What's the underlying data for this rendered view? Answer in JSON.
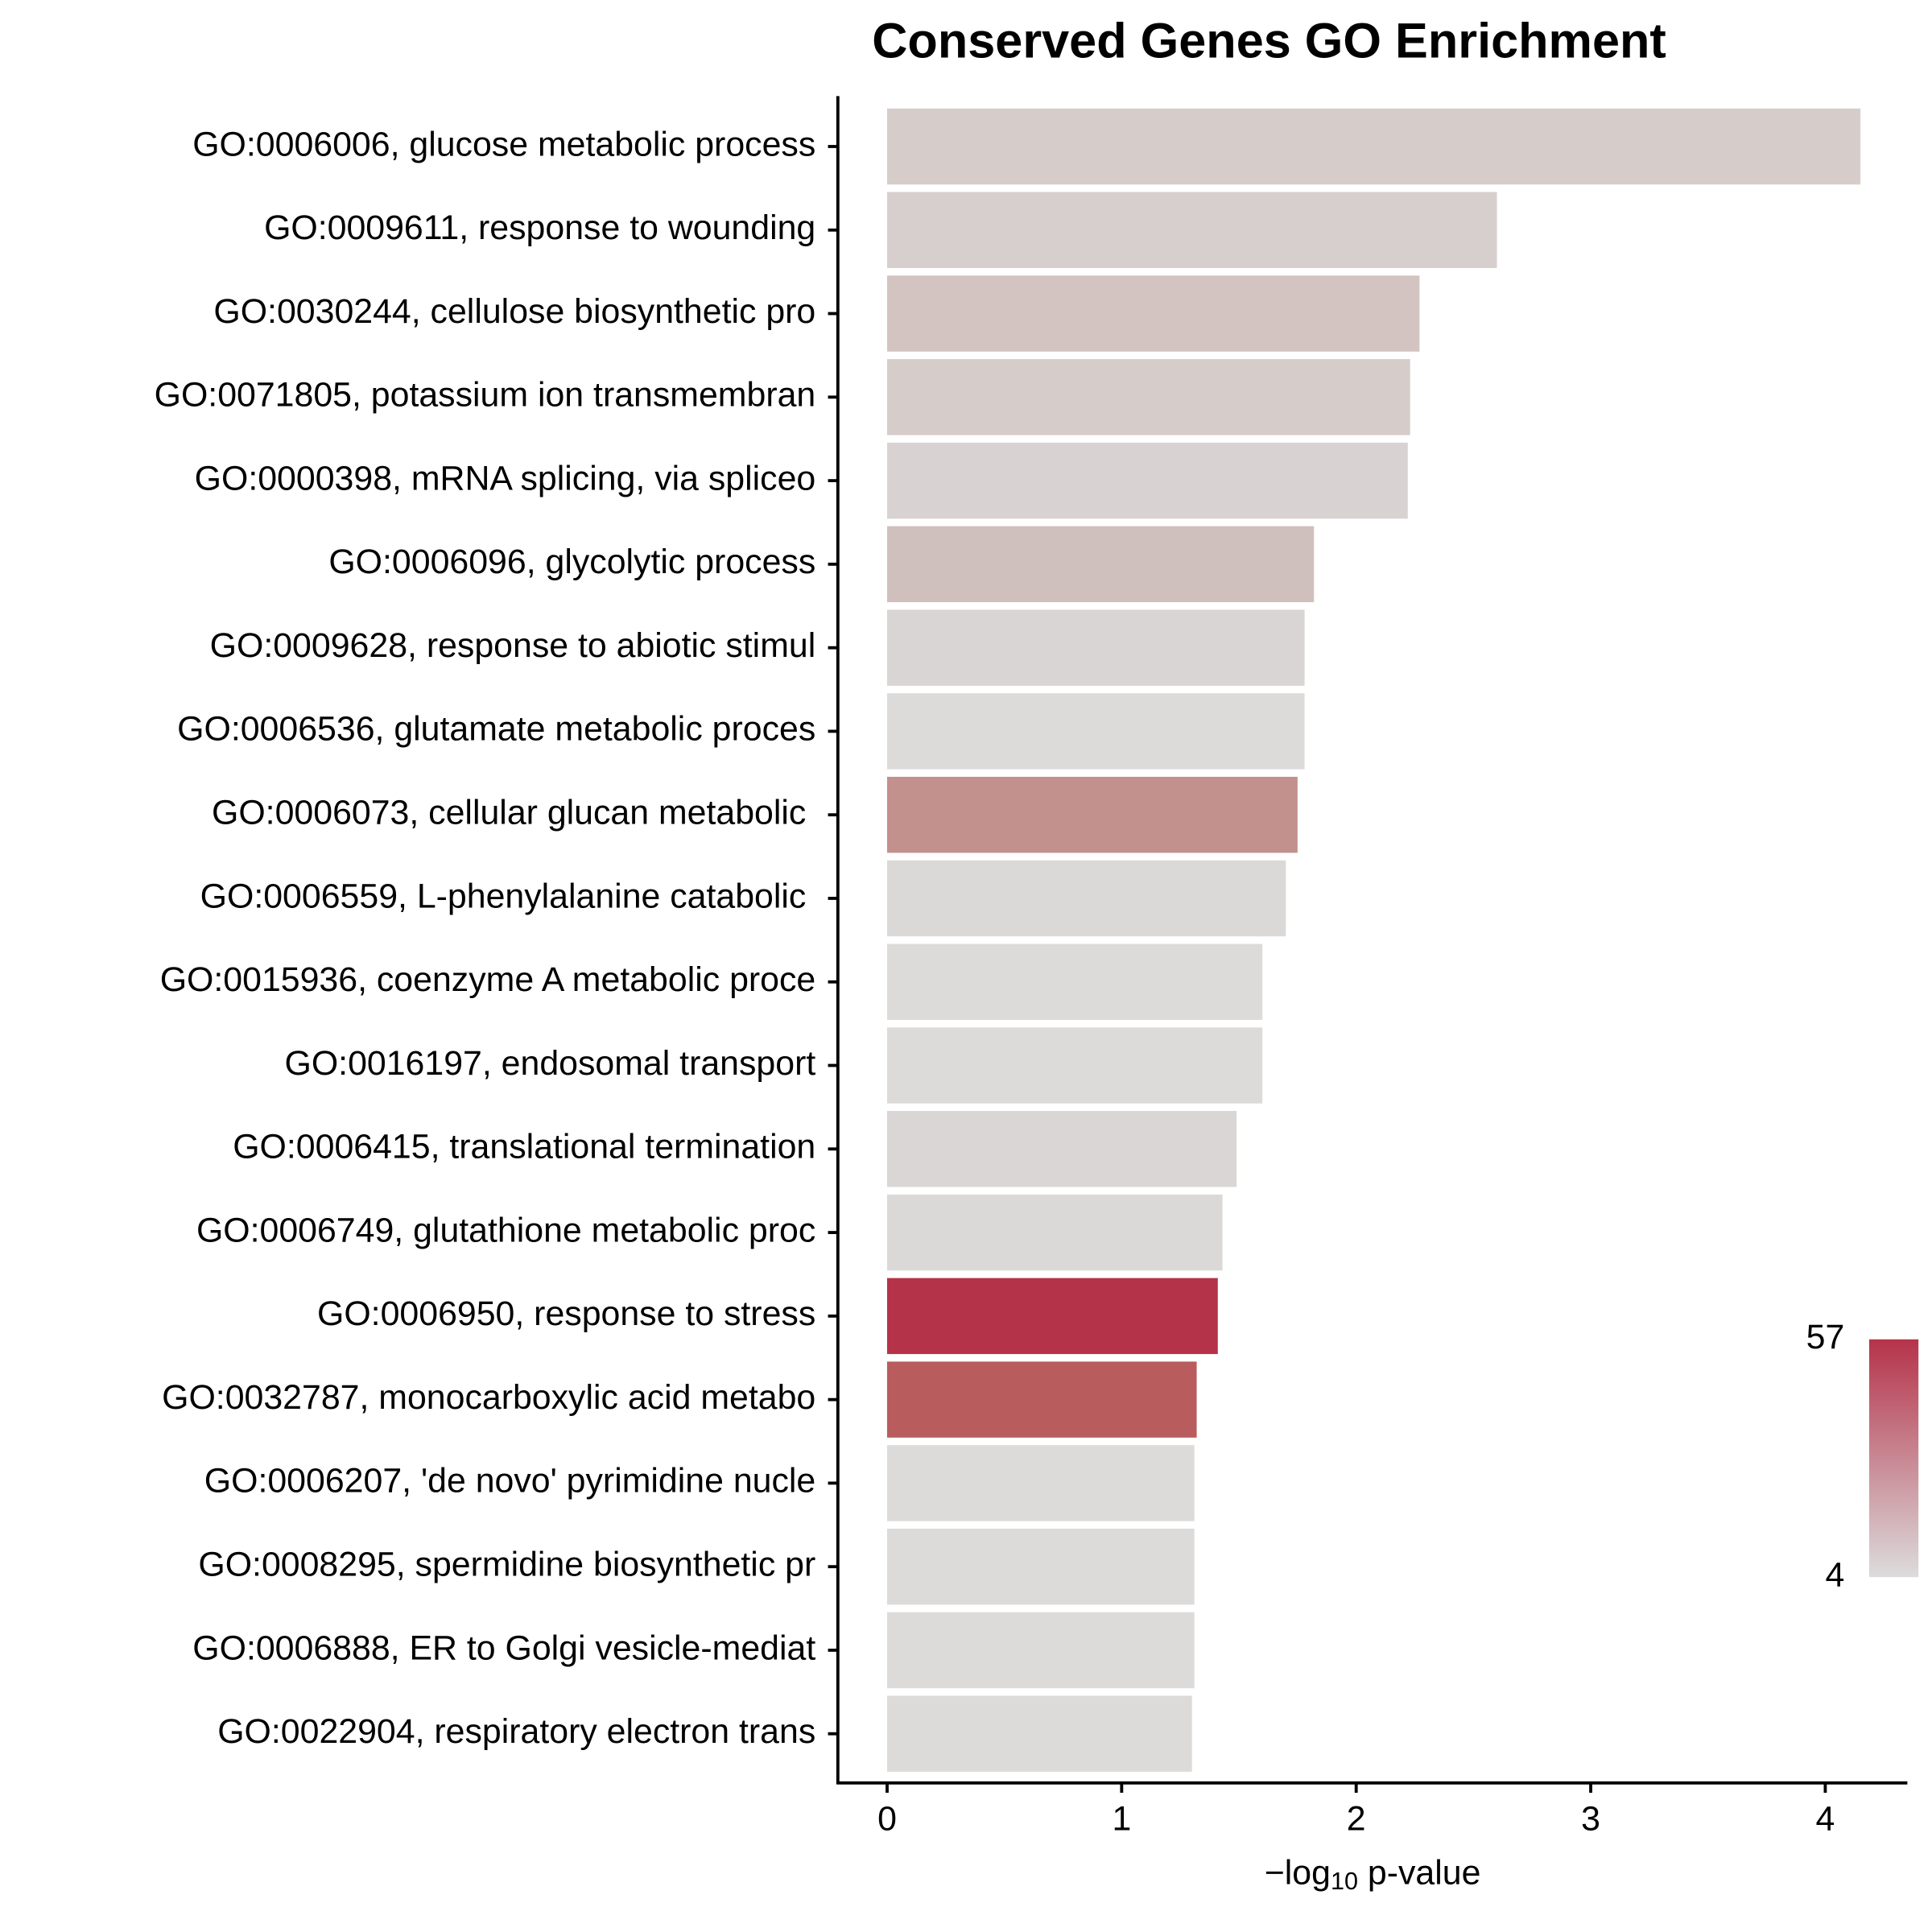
{
  "chart_data": {
    "type": "bar",
    "orientation": "horizontal",
    "title": "Conserved Genes GO Enrichment",
    "xlabel": {
      "prefix": "−log",
      "sub": "10",
      "suffix": " p-value"
    },
    "categories": [
      "GO:0006006, glucose metabolic process",
      "GO:0009611, response to wounding",
      "GO:0030244, cellulose biosynthetic pro",
      "GO:0071805, potassium ion transmembran",
      "GO:0000398, mRNA splicing, via spliceo",
      "GO:0006096, glycolytic process",
      "GO:0009628, response to abiotic stimul",
      "GO:0006536, glutamate metabolic proces",
      "GO:0006073, cellular glucan metabolic ",
      "GO:0006559, L-phenylalanine catabolic ",
      "GO:0015936, coenzyme A metabolic proce",
      "GO:0016197, endosomal transport",
      "GO:0006415, translational termination",
      "GO:0006749, glutathione metabolic proc",
      "GO:0006950, response to stress",
      "GO:0032787, monocarboxylic acid metabo",
      "GO:0006207, 'de novo' pyrimidine nucle",
      "GO:0008295, spermidine biosynthetic pr",
      "GO:0006888, ER to Golgi vesicle-mediat",
      "GO:0022904, respiratory electron trans"
    ],
    "values": [
      4.15,
      2.6,
      2.27,
      2.23,
      2.22,
      1.82,
      1.78,
      1.78,
      1.75,
      1.7,
      1.6,
      1.6,
      1.49,
      1.43,
      1.41,
      1.32,
      1.31,
      1.31,
      1.31,
      1.3
    ],
    "colors": [
      "#d6cdcb",
      "#d7cfcd",
      "#d3c4c1",
      "#d6cdcb",
      "#d8d3d2",
      "#d0c0bd",
      "#d9d5d4",
      "#dcdbda",
      "#c2908d",
      "#dbd9d8",
      "#dcdbda",
      "#dcdbda",
      "#dad6d5",
      "#dbd9d8",
      "#b53349",
      "#b95c5e",
      "#dcdbda",
      "#dcdbda",
      "#dcdbda",
      "#dcdbda"
    ],
    "xlim": [
      -0.21,
      4.35
    ],
    "xticks": [
      0,
      1,
      2,
      3,
      4
    ],
    "colorbar": {
      "lim": [
        4,
        57
      ],
      "ticks": [
        4,
        57
      ],
      "colors": [
        "#dcdcdc",
        "#b5334a"
      ]
    }
  }
}
